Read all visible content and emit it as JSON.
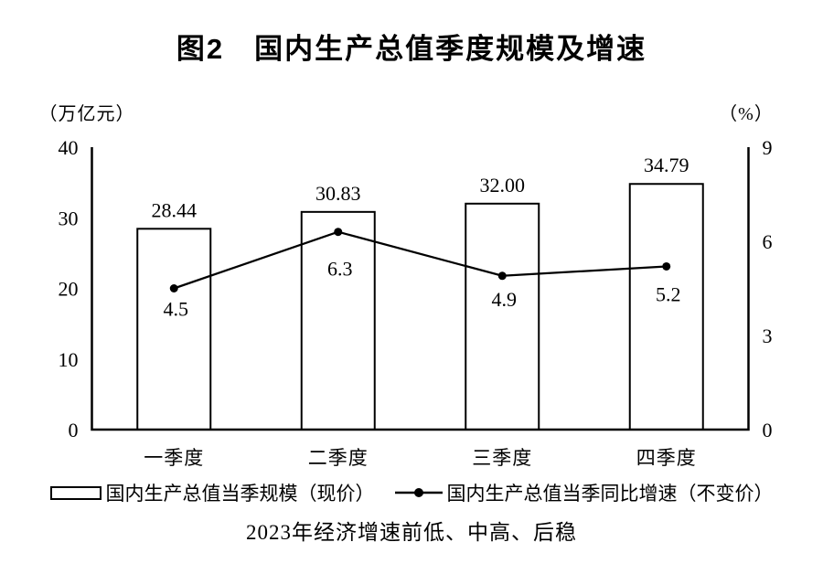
{
  "chart_data": {
    "type": "bar",
    "title": "图2　国内生产总值季度规模及增速",
    "caption": "2023年经济增速前低、中高、后稳",
    "categories": [
      "一季度",
      "二季度",
      "三季度",
      "四季度"
    ],
    "series": [
      {
        "name": "国内生产总值当季规模（现价）",
        "type": "bar",
        "axis": "left",
        "values": [
          28.44,
          30.83,
          32.0,
          34.79
        ],
        "value_labels": [
          "28.44",
          "30.83",
          "32.00",
          "34.79"
        ]
      },
      {
        "name": "国内生产总值当季同比增速（不变价）",
        "type": "line",
        "axis": "right",
        "values": [
          4.5,
          6.3,
          4.9,
          5.2
        ],
        "value_labels": [
          "4.5",
          "6.3",
          "4.9",
          "5.2"
        ]
      }
    ],
    "left_axis": {
      "unit_label": "（万亿元）",
      "ticks": [
        0,
        10,
        20,
        30,
        40
      ],
      "range": [
        0,
        40
      ]
    },
    "right_axis": {
      "unit_label": "（%）",
      "ticks": [
        0,
        3,
        6,
        9
      ],
      "range": [
        0,
        9
      ]
    },
    "grid": false,
    "legend_position": "bottom",
    "colors": {
      "foreground": "#000000",
      "background": "#ffffff"
    }
  }
}
